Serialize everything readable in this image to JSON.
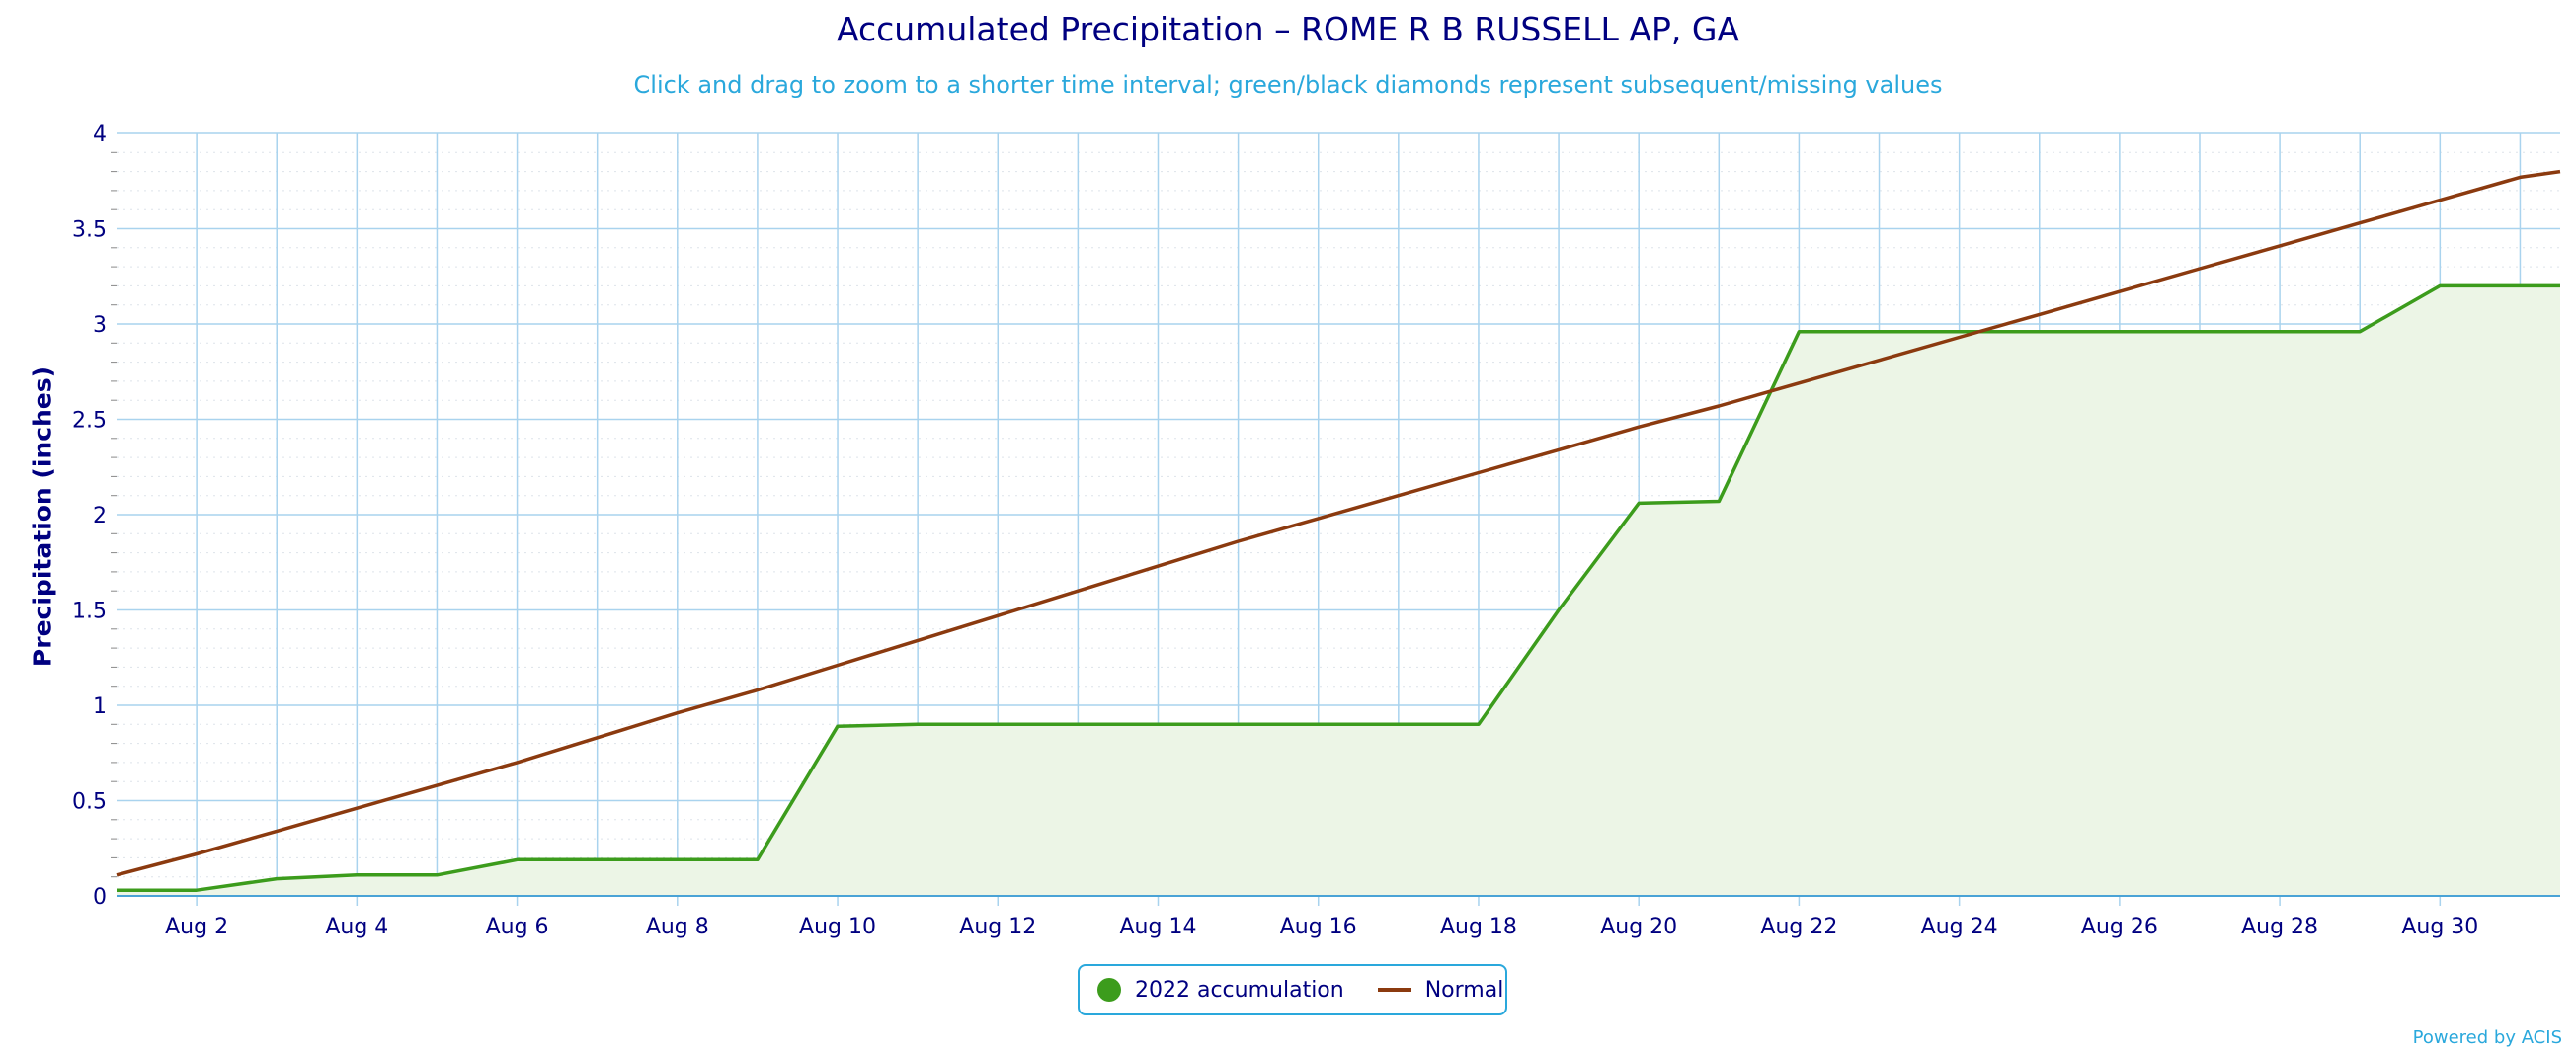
{
  "chart_data": {
    "type": "line",
    "title": "Accumulated Precipitation – ROME R B RUSSELL AP, GA",
    "subtitle": "Click and drag to zoom to a shorter time interval; green/black diamonds represent subsequent/missing values",
    "ylabel": "Precipitation (inches)",
    "xlabel": "",
    "ylim": [
      0,
      4
    ],
    "xlim": [
      1,
      31.5
    ],
    "y_ticks": [
      0,
      0.5,
      1,
      1.5,
      2,
      2.5,
      3,
      3.5,
      4
    ],
    "y_tick_labels": [
      "0",
      "0.5",
      "1",
      "1.5",
      "2",
      "2.5",
      "3",
      "3.5",
      "4"
    ],
    "x_ticks": [
      2,
      4,
      6,
      8,
      10,
      12,
      14,
      16,
      18,
      20,
      22,
      24,
      26,
      28,
      30
    ],
    "x_tick_labels": [
      "Aug 2",
      "Aug 4",
      "Aug 6",
      "Aug 8",
      "Aug 10",
      "Aug 12",
      "Aug 14",
      "Aug 16",
      "Aug 18",
      "Aug 20",
      "Aug 22",
      "Aug 24",
      "Aug 26",
      "Aug 28",
      "Aug 30"
    ],
    "grid": true,
    "legend_position": "bottom-center",
    "series": [
      {
        "name": "2022 accumulation",
        "color": "#3c9c1c",
        "fill": true,
        "x": [
          1,
          2,
          3,
          4,
          5,
          6,
          7,
          8,
          9,
          10,
          11,
          12,
          13,
          14,
          15,
          16,
          17,
          18,
          19,
          20,
          21,
          22,
          23,
          24,
          25,
          26,
          27,
          28,
          29,
          30,
          31
        ],
        "y": [
          0.03,
          0.03,
          0.09,
          0.11,
          0.11,
          0.19,
          0.19,
          0.19,
          0.19,
          0.89,
          0.9,
          0.9,
          0.9,
          0.9,
          0.9,
          0.9,
          0.9,
          0.9,
          1.5,
          2.06,
          2.07,
          2.96,
          2.96,
          2.96,
          2.96,
          2.96,
          2.96,
          2.96,
          2.96,
          3.2,
          3.2
        ]
      },
      {
        "name": "Normal",
        "color": "#8b3a0f",
        "fill": false,
        "x": [
          1,
          2,
          3,
          4,
          5,
          6,
          7,
          8,
          9,
          10,
          11,
          12,
          13,
          14,
          15,
          16,
          17,
          18,
          19,
          20,
          21,
          22,
          23,
          24,
          25,
          26,
          27,
          28,
          29,
          30,
          31,
          31.5
        ],
        "y": [
          0.11,
          0.22,
          0.34,
          0.46,
          0.58,
          0.7,
          0.83,
          0.96,
          1.08,
          1.21,
          1.34,
          1.47,
          1.6,
          1.73,
          1.86,
          1.98,
          2.1,
          2.22,
          2.34,
          2.46,
          2.57,
          2.69,
          2.81,
          2.93,
          3.05,
          3.17,
          3.29,
          3.41,
          3.53,
          3.65,
          3.77,
          3.8
        ]
      }
    ]
  },
  "legend": {
    "items": [
      {
        "label": "2022 accumulation",
        "color": "#3c9c1c",
        "marker": "circle"
      },
      {
        "label": "Normal",
        "color": "#8b3a0f",
        "marker": "line"
      }
    ]
  },
  "credit": "Powered by ACIS",
  "colors": {
    "grid": "#a9d3ee",
    "minor_grid": "#dde3ea",
    "axis_text": "#000080",
    "fill": "#ecf5e6"
  }
}
